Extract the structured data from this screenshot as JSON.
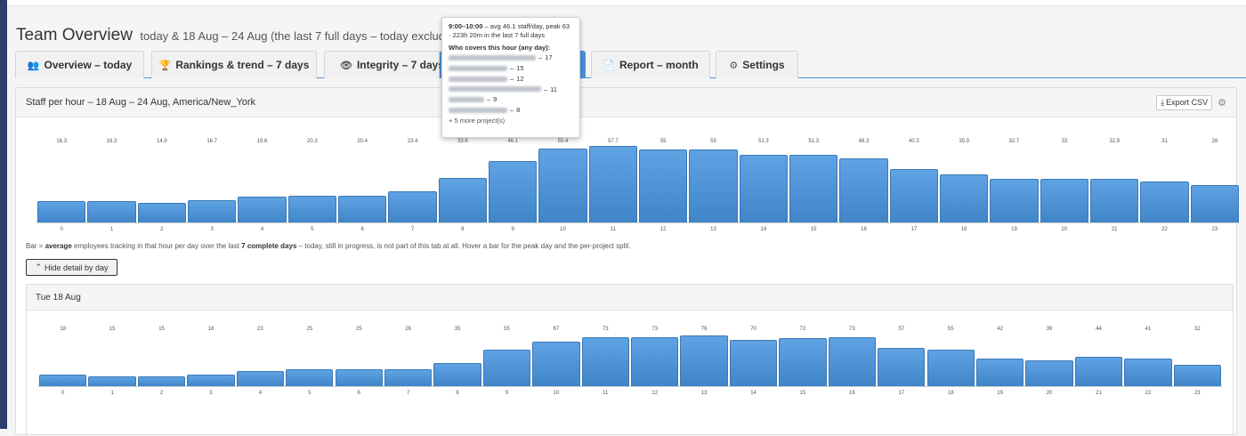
{
  "header": {
    "title": "Team Overview",
    "subtitle": "today & 18 Aug – 24 Aug (the last 7 full days – today excluded)"
  },
  "tabs": [
    {
      "label": "Overview – today",
      "icon": "users-icon",
      "glyph": "👥"
    },
    {
      "label": "Rankings & trend – 7 days",
      "icon": "trophy-icon",
      "glyph": "🏆"
    },
    {
      "label": "Integrity – 7 days",
      "icon": "eye-icon",
      "glyph": "👁"
    },
    {
      "label": "",
      "icon": "",
      "glyph": ""
    },
    {
      "label": "Report – month",
      "icon": "document-icon",
      "glyph": "📄"
    },
    {
      "label": "Settings",
      "icon": "gear-icon",
      "glyph": "⚙"
    }
  ],
  "panel": {
    "title": "Staff per hour – 18 Aug – 24 Aug, America/New_York",
    "export_label": "Export CSV",
    "note_pre": "Bar = ",
    "note_avg": "average",
    "note_mid": " employees tracking in that hour per day over the last ",
    "note_days": "7 complete days",
    "note_post": " – today, still in progress, is not part of this tab at all. Hover a bar for the peak day and the per-project split.",
    "hide_label": "Hide detail by day"
  },
  "day_panel": {
    "title": "Tue 18 Aug"
  },
  "tooltip": {
    "head_time": "9:00–10:00",
    "head_text": " – avg 46.1 staff/day, peak 63 · 223h 20m in the last 7 full days",
    "who_title": "Who covers this hour (any day):",
    "rows": [
      {
        "value": "17"
      },
      {
        "value": "15"
      },
      {
        "value": "12"
      },
      {
        "value": "11"
      },
      {
        "value": "9"
      },
      {
        "value": "8"
      }
    ],
    "more": "+ 5 more project(s)"
  },
  "colors": {
    "bar": "#4a90d9",
    "accent": "#4a90d9"
  },
  "chart_data": [
    {
      "type": "bar",
      "categories": [
        "0",
        "1",
        "2",
        "3",
        "4",
        "5",
        "6",
        "7",
        "8",
        "9",
        "10",
        "11",
        "12",
        "13",
        "14",
        "15",
        "16",
        "17",
        "18",
        "19",
        "20",
        "21",
        "22",
        "23"
      ],
      "values": [
        16.3,
        16.3,
        14.9,
        16.7,
        19.6,
        20.3,
        20.4,
        23.4,
        33.6,
        46.1,
        55.4,
        57.7,
        55,
        55,
        51.3,
        51.3,
        48.3,
        40.3,
        35.9,
        32.7,
        33,
        32.9,
        31,
        28
      ],
      "value_labels": [
        "16.3",
        "16.3",
        "14.9",
        "16.7",
        "19.6",
        "20.3",
        "20.4",
        "23.4",
        "33.6",
        "46.1",
        "55.4",
        "57.7",
        "55",
        "55",
        "51.3",
        "51.3",
        "48.3",
        "40.3",
        "35.9",
        "32.7",
        "33",
        "32.9",
        "31",
        "28"
      ],
      "title": "Staff per hour – 18 Aug – 24 Aug, America/New_York",
      "ylim": [
        0,
        57.7
      ]
    },
    {
      "type": "bar",
      "categories": [
        "0",
        "1",
        "2",
        "3",
        "4",
        "5",
        "6",
        "7",
        "8",
        "9",
        "10",
        "11",
        "12",
        "13",
        "14",
        "15",
        "16",
        "17",
        "18",
        "19",
        "20",
        "21",
        "22",
        "23"
      ],
      "values": [
        18,
        15,
        15,
        18,
        23,
        25,
        25,
        26,
        35,
        55,
        67,
        73,
        73,
        76,
        70,
        72,
        73,
        57,
        55,
        42,
        39,
        44,
        41,
        32
      ],
      "value_labels": [
        "18",
        "15",
        "15",
        "18",
        "23",
        "25",
        "25",
        "26",
        "35",
        "55",
        "67",
        "73",
        "73",
        "76",
        "70",
        "72",
        "73",
        "57",
        "55",
        "42",
        "39",
        "44",
        "41",
        "32"
      ],
      "title": "Tue 18 Aug",
      "ylim": [
        0,
        76
      ]
    }
  ]
}
